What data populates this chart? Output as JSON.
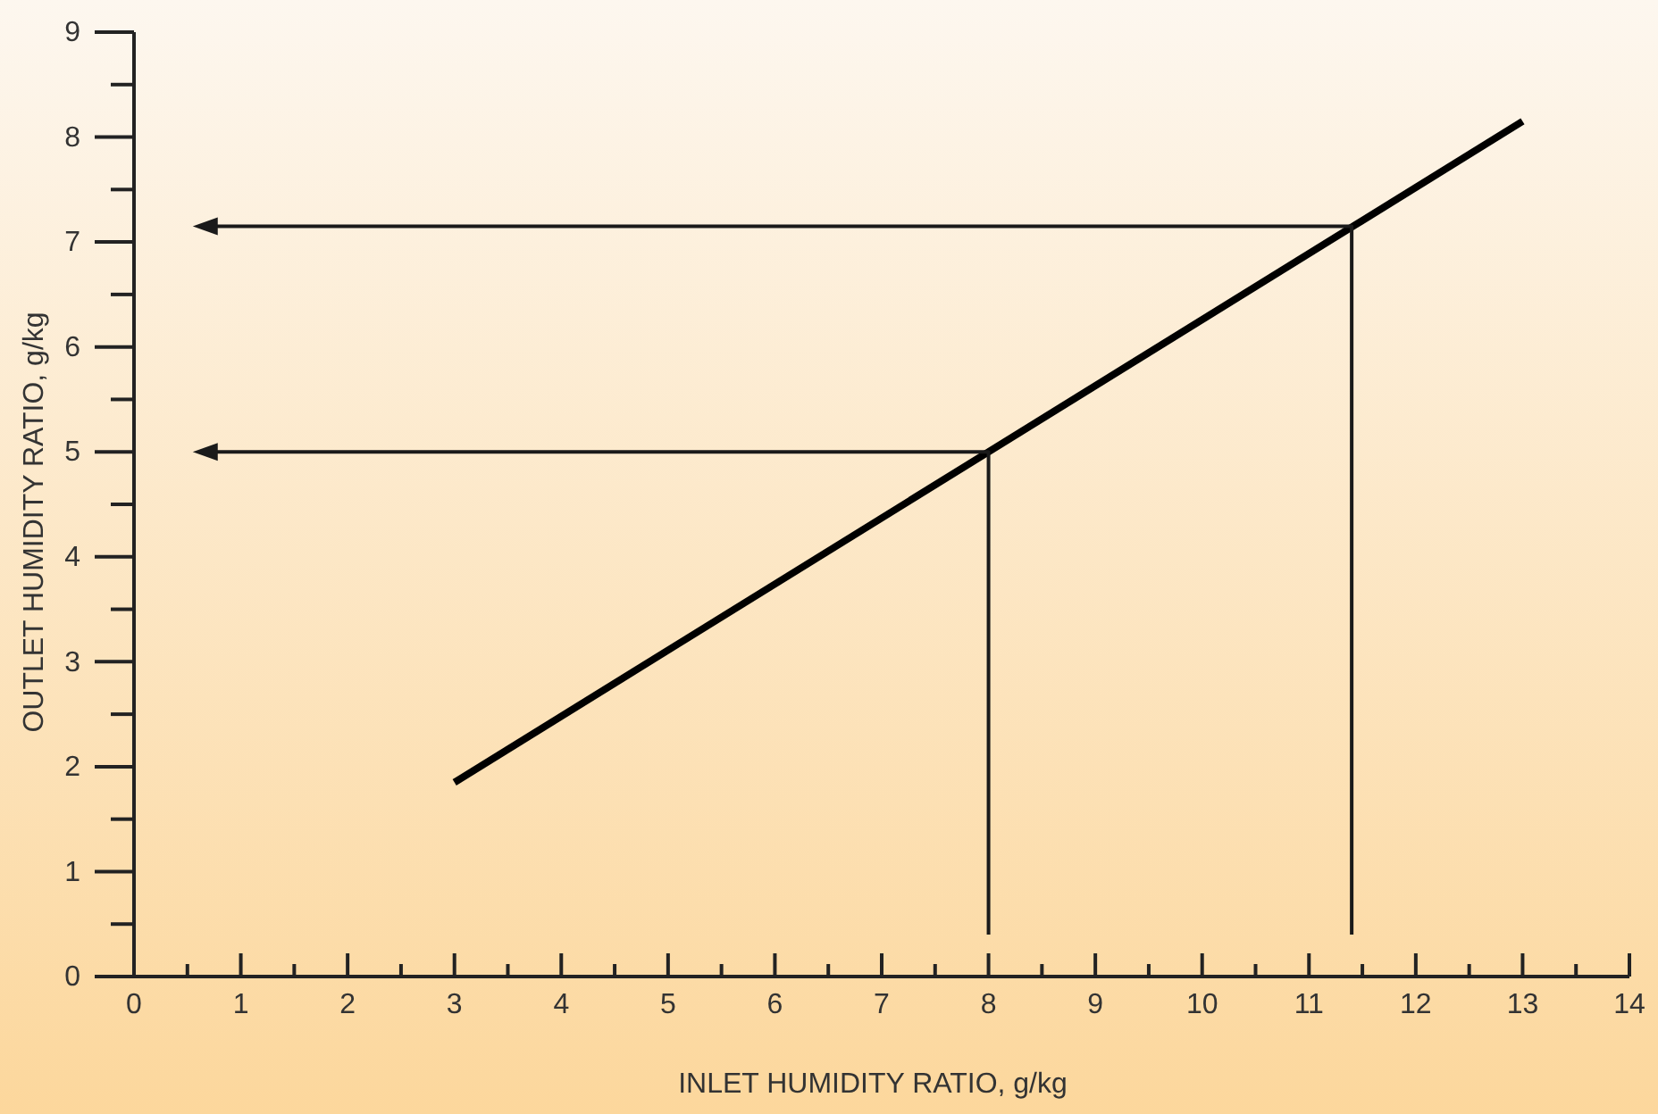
{
  "chart_data": {
    "type": "line",
    "xlabel": "INLET HUMIDITY RATIO, g/kg",
    "ylabel": "OUTLET HUMIDITY RATIO, g/kg",
    "xlim": [
      0,
      14
    ],
    "ylim": [
      0,
      9
    ],
    "xticks": [
      0,
      {
        "value": 0.5,
        "label": null
      },
      1,
      {
        "value": 1.5,
        "label": null
      },
      2,
      {
        "value": 2.5,
        "label": null
      },
      3,
      {
        "value": 3.5,
        "label": null
      },
      4,
      {
        "value": 4.5,
        "label": null
      },
      5,
      {
        "value": 5.5,
        "label": null
      },
      6,
      {
        "value": 6.5,
        "label": null
      },
      7,
      {
        "value": 7.5,
        "label": null
      },
      8,
      {
        "value": 8.5,
        "label": null
      },
      9,
      {
        "value": 9.5,
        "label": null
      },
      10,
      {
        "value": 10.5,
        "label": null
      },
      11,
      {
        "value": 11.5,
        "label": null
      },
      12,
      {
        "value": 12.5,
        "label": null
      },
      13,
      {
        "value": 13.5,
        "label": null
      },
      14
    ],
    "yticks": [
      0,
      {
        "value": 0.5,
        "label": null
      },
      1,
      {
        "value": 1.5,
        "label": null
      },
      2,
      {
        "value": 2.5,
        "label": null
      },
      3,
      {
        "value": 3.5,
        "label": null
      },
      4,
      {
        "value": 4.5,
        "label": null
      },
      5,
      {
        "value": 5.5,
        "label": null
      },
      6,
      {
        "value": 6.5,
        "label": null
      },
      7,
      {
        "value": 7.5,
        "label": null
      },
      8,
      {
        "value": 8.5,
        "label": null
      },
      9
    ],
    "grid": false,
    "line_style": "solid",
    "series": [
      {
        "color": "#000000",
        "x": [
          3,
          13
        ],
        "values": [
          1.85,
          8.15
        ]
      }
    ]
  }
}
